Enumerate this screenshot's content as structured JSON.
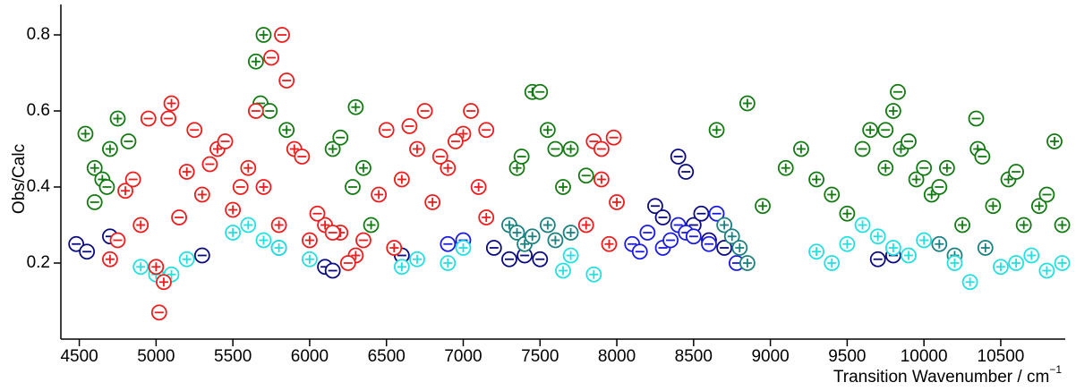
{
  "chart_data": {
    "type": "scatter",
    "xlabel": "Transition Wavenumber / cm",
    "xlabel_sup": "−1",
    "ylabel": "Obs/Calc",
    "xlim": [
      4380,
      10920
    ],
    "ylim": [
      0,
      0.88
    ],
    "xticks": [
      4500,
      5000,
      5500,
      6000,
      6500,
      7000,
      7500,
      8000,
      8500,
      9000,
      9500,
      10000,
      10500
    ],
    "yticks": [
      0.2,
      0.4,
      0.6,
      0.8
    ],
    "series": [
      {
        "color": "#0a0a80",
        "marker": "minus",
        "x": [
          4480,
          4550,
          4700,
          5300,
          5800,
          6100,
          6150,
          6600,
          7200,
          7300,
          7400,
          7500,
          8250,
          8300,
          8400,
          8450,
          8500,
          8550,
          8600,
          8700,
          9700,
          9800
        ],
        "values": [
          0.25,
          0.23,
          0.27,
          0.22,
          0.24,
          0.19,
          0.18,
          0.22,
          0.24,
          0.21,
          0.22,
          0.21,
          0.35,
          0.32,
          0.48,
          0.44,
          0.3,
          0.33,
          0.26,
          0.24,
          0.21,
          0.22
        ]
      },
      {
        "color": "#1a1ae6",
        "marker": "minus",
        "x": [
          8100,
          8150,
          8200,
          8300,
          8350,
          8400,
          8450,
          8500,
          8600,
          8650,
          8780,
          6900,
          7000
        ],
        "values": [
          0.25,
          0.23,
          0.28,
          0.24,
          0.26,
          0.3,
          0.28,
          0.27,
          0.25,
          0.33,
          0.2,
          0.25,
          0.26
        ]
      },
      {
        "color": "#1a8080",
        "marker": "plus",
        "x": [
          7300,
          7350,
          7400,
          7450,
          7550,
          7600,
          7700,
          8700,
          8750,
          8800,
          8850,
          10100,
          10200,
          10400
        ],
        "values": [
          0.3,
          0.28,
          0.25,
          0.27,
          0.3,
          0.26,
          0.28,
          0.3,
          0.27,
          0.24,
          0.2,
          0.25,
          0.22,
          0.24
        ]
      },
      {
        "color": "#22e0e0",
        "marker": "plus",
        "x": [
          4900,
          5000,
          5100,
          5200,
          5500,
          5600,
          5700,
          5800,
          6000,
          6600,
          6700,
          6900,
          7000,
          7650,
          7700,
          7850,
          9300,
          9400,
          9500,
          9600,
          9700,
          9800,
          9900,
          10000,
          10200,
          10300,
          10500,
          10600,
          10700,
          10800,
          10900
        ],
        "values": [
          0.19,
          0.17,
          0.17,
          0.21,
          0.28,
          0.3,
          0.26,
          0.24,
          0.21,
          0.19,
          0.21,
          0.2,
          0.24,
          0.18,
          0.22,
          0.17,
          0.23,
          0.2,
          0.25,
          0.3,
          0.27,
          0.24,
          0.22,
          0.26,
          0.2,
          0.15,
          0.19,
          0.2,
          0.22,
          0.18,
          0.2
        ]
      },
      {
        "color": "#137a13",
        "marker": "plus",
        "x": [
          4540,
          4600,
          4650,
          4700,
          4750,
          5650,
          5700,
          5850,
          6150,
          6300,
          6350,
          6400,
          7350,
          7450,
          7550,
          7650,
          7700,
          8650,
          8850,
          8950,
          9100,
          9200,
          9300,
          9400,
          9500,
          9650,
          9750,
          9800,
          9850,
          9950,
          10050,
          10150,
          10250,
          10350,
          10450,
          10550,
          10650,
          10750,
          10850,
          10900
        ],
        "values": [
          0.54,
          0.45,
          0.42,
          0.5,
          0.58,
          0.73,
          0.8,
          0.55,
          0.5,
          0.61,
          0.45,
          0.3,
          0.45,
          0.65,
          0.55,
          0.4,
          0.5,
          0.55,
          0.62,
          0.35,
          0.45,
          0.5,
          0.42,
          0.38,
          0.33,
          0.55,
          0.45,
          0.6,
          0.5,
          0.42,
          0.38,
          0.45,
          0.3,
          0.5,
          0.35,
          0.42,
          0.3,
          0.35,
          0.52,
          0.3
        ]
      },
      {
        "color": "#137a13",
        "marker": "minus",
        "x": [
          4600,
          4680,
          4820,
          5680,
          5740,
          6200,
          6280,
          7380,
          7500,
          7600,
          7800,
          9600,
          9750,
          9830,
          9900,
          10000,
          10100,
          10340,
          10380,
          10600,
          10800
        ],
        "values": [
          0.36,
          0.4,
          0.52,
          0.62,
          0.6,
          0.53,
          0.4,
          0.48,
          0.65,
          0.5,
          0.43,
          0.5,
          0.55,
          0.65,
          0.52,
          0.45,
          0.4,
          0.58,
          0.48,
          0.44,
          0.38
        ]
      },
      {
        "color": "#ee1c1c",
        "marker": "plus",
        "x": [
          4700,
          4800,
          4900,
          5000,
          5050,
          5100,
          5200,
          5300,
          5400,
          5500,
          5600,
          5700,
          5800,
          5900,
          6000,
          6100,
          6200,
          6300,
          6450,
          6550,
          6600,
          6700,
          6800,
          6900,
          7000,
          7100,
          7150,
          7800,
          7900,
          7950,
          8000
        ],
        "values": [
          0.21,
          0.39,
          0.3,
          0.19,
          0.15,
          0.62,
          0.44,
          0.38,
          0.5,
          0.34,
          0.45,
          0.4,
          0.3,
          0.5,
          0.26,
          0.3,
          0.28,
          0.22,
          0.38,
          0.24,
          0.42,
          0.5,
          0.36,
          0.45,
          0.54,
          0.4,
          0.32,
          0.3,
          0.42,
          0.25,
          0.36
        ]
      },
      {
        "color": "#ee1c1c",
        "marker": "minus",
        "x": [
          4750,
          4850,
          4950,
          5020,
          5080,
          5150,
          5250,
          5350,
          5450,
          5550,
          5650,
          5750,
          5820,
          5850,
          5950,
          6050,
          6150,
          6250,
          6350,
          6500,
          6650,
          6750,
          6850,
          6950,
          7050,
          7150,
          7850,
          7900,
          7980
        ],
        "values": [
          0.26,
          0.42,
          0.58,
          0.07,
          0.58,
          0.32,
          0.55,
          0.46,
          0.52,
          0.4,
          0.6,
          0.74,
          0.8,
          0.68,
          0.48,
          0.33,
          0.28,
          0.2,
          0.26,
          0.55,
          0.56,
          0.6,
          0.48,
          0.52,
          0.6,
          0.55,
          0.52,
          0.5,
          0.53
        ]
      }
    ]
  }
}
